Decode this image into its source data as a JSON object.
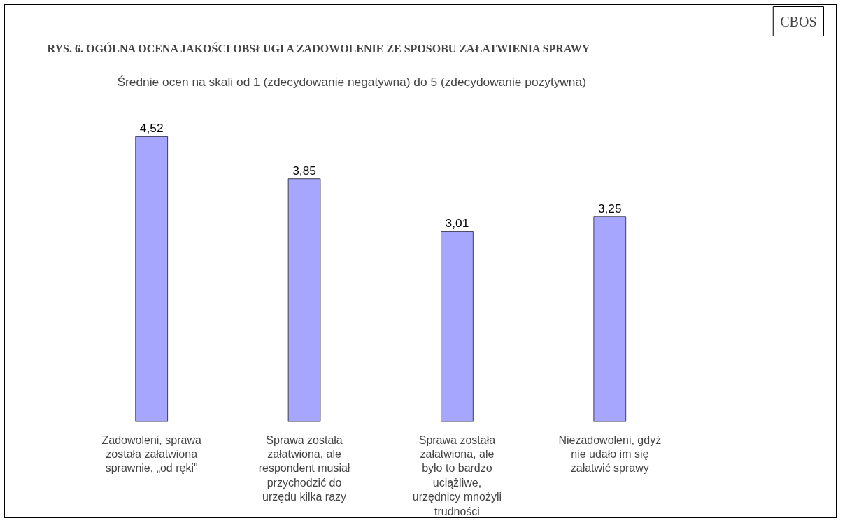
{
  "chart_data": {
    "type": "bar",
    "title": "RYS. 6. OGÓLNA OCENA JAKOŚCI OBSŁUGI A ZADOWOLENIE ZE SPOSOBU ZAŁATWIENIA SPRAWY",
    "subtitle": "Średnie ocen na skali od 1 (zdecydowanie negatywna) do 5 (zdecydowanie pozytywna)",
    "annotations": [
      "CBOS"
    ],
    "categories": [
      "Zadowoleni, sprawa została załatwiona sprawnie, „od ręki\"",
      "Sprawa została załatwiona, ale respondent musiał przychodzić do urzędu kilka razy",
      "Sprawa została załatwiona, ale było to bardzo uciążliwe, urzędnicy mnożyli trudności",
      "Niezadowoleni, gdyż nie udało im się załatwić sprawy"
    ],
    "values": [
      4.52,
      3.85,
      3.01,
      3.25
    ],
    "color": "#a6a6ff",
    "value_labels": [
      "4,52",
      "3,85",
      "3,01",
      "3,25"
    ]
  }
}
